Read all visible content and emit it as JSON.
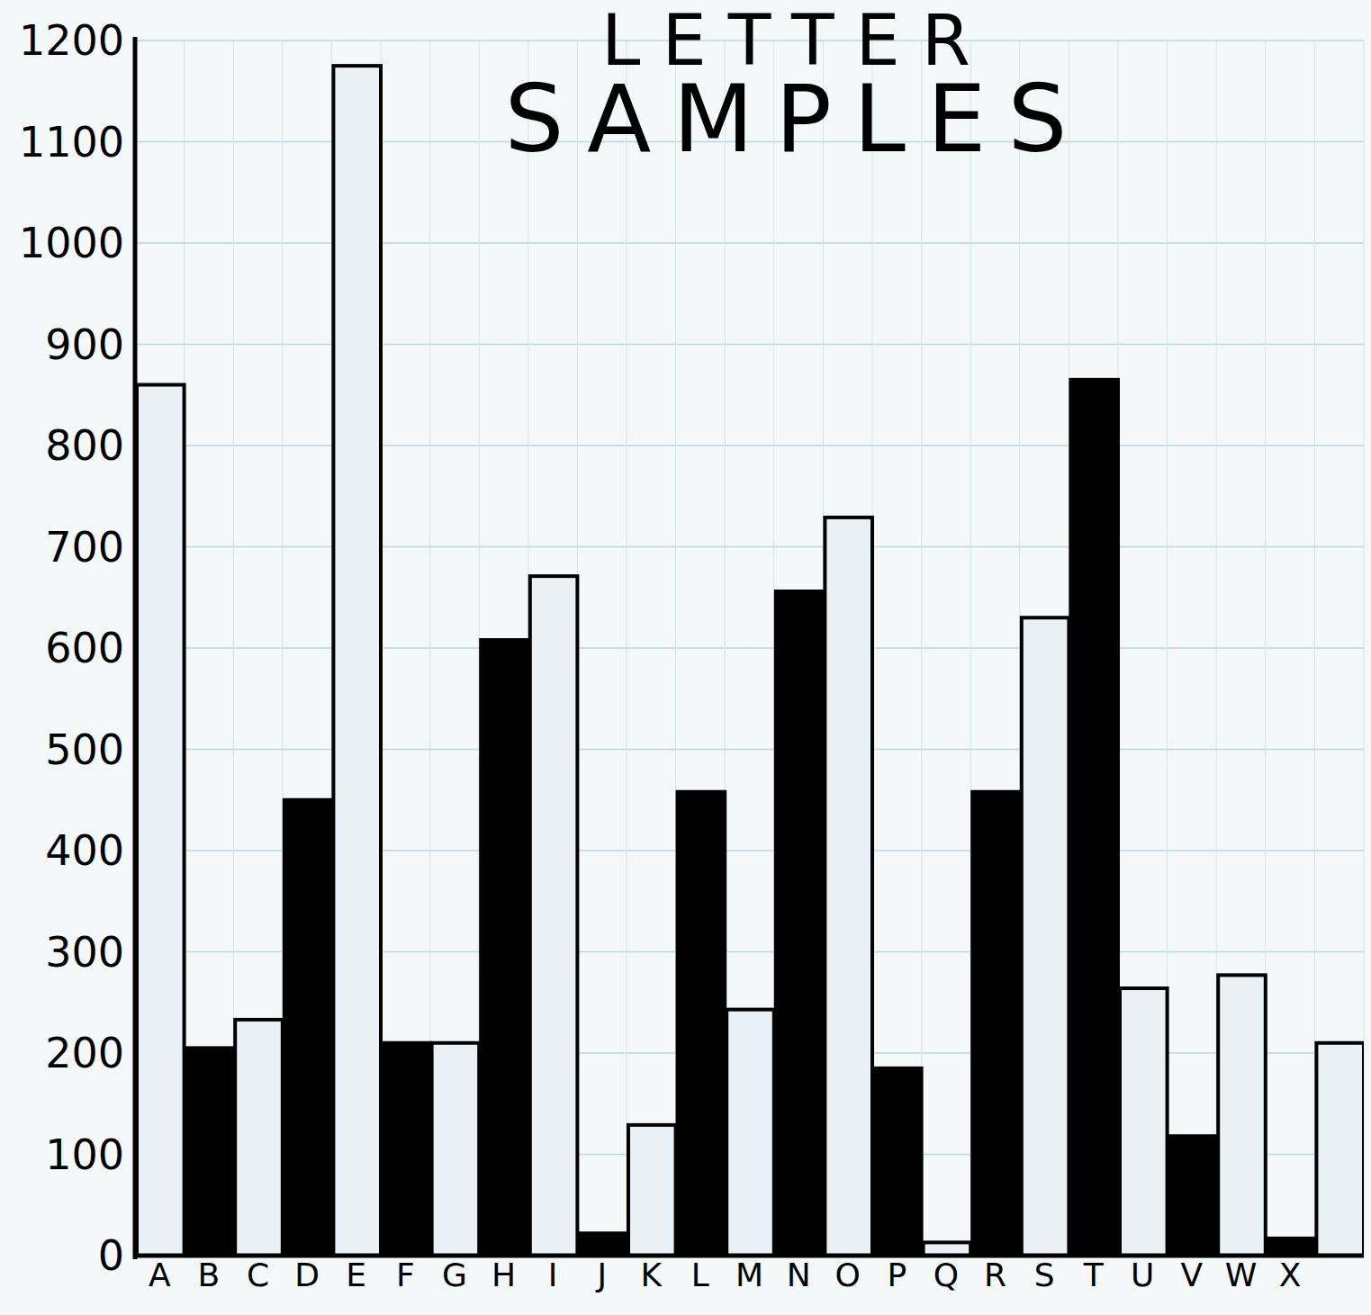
{
  "chart_data": {
    "type": "bar",
    "title": "LETTER SAMPLES",
    "categories": [
      "A",
      "B",
      "C",
      "D",
      "E",
      "F",
      "G",
      "H",
      "I",
      "J",
      "K",
      "L",
      "M",
      "N",
      "O",
      "P",
      "Q",
      "R",
      "S",
      "T",
      "U",
      "V",
      "W",
      "X",
      null
    ],
    "values": [
      860,
      205,
      233,
      450,
      1175,
      210,
      210,
      608,
      671,
      22,
      129,
      458,
      243,
      656,
      729,
      185,
      13,
      458,
      630,
      865,
      264,
      118,
      277,
      17,
      210
    ],
    "colors": [
      "#e9f1f7",
      "#000000",
      "#e9f1f7",
      "#000000",
      "#e9f1f7",
      "#000000",
      "#e9f1f7",
      "#000000",
      "#e9f1f7",
      "#000000",
      "#e9f1f7",
      "#000000",
      "#e9f1f7",
      "#000000",
      "#e9f1f7",
      "#000000",
      "#e9f1f7",
      "#000000",
      "#e9f1f7",
      "#000000",
      "#e9f1f7",
      "#000000",
      "#e9f1f7",
      "#000000",
      "#e9f1f7"
    ],
    "ylim": [
      0,
      1200
    ],
    "yticks": [
      0,
      100,
      200,
      300,
      400,
      500,
      600,
      700,
      800,
      900,
      1000,
      1100,
      1200
    ],
    "grid": true
  }
}
